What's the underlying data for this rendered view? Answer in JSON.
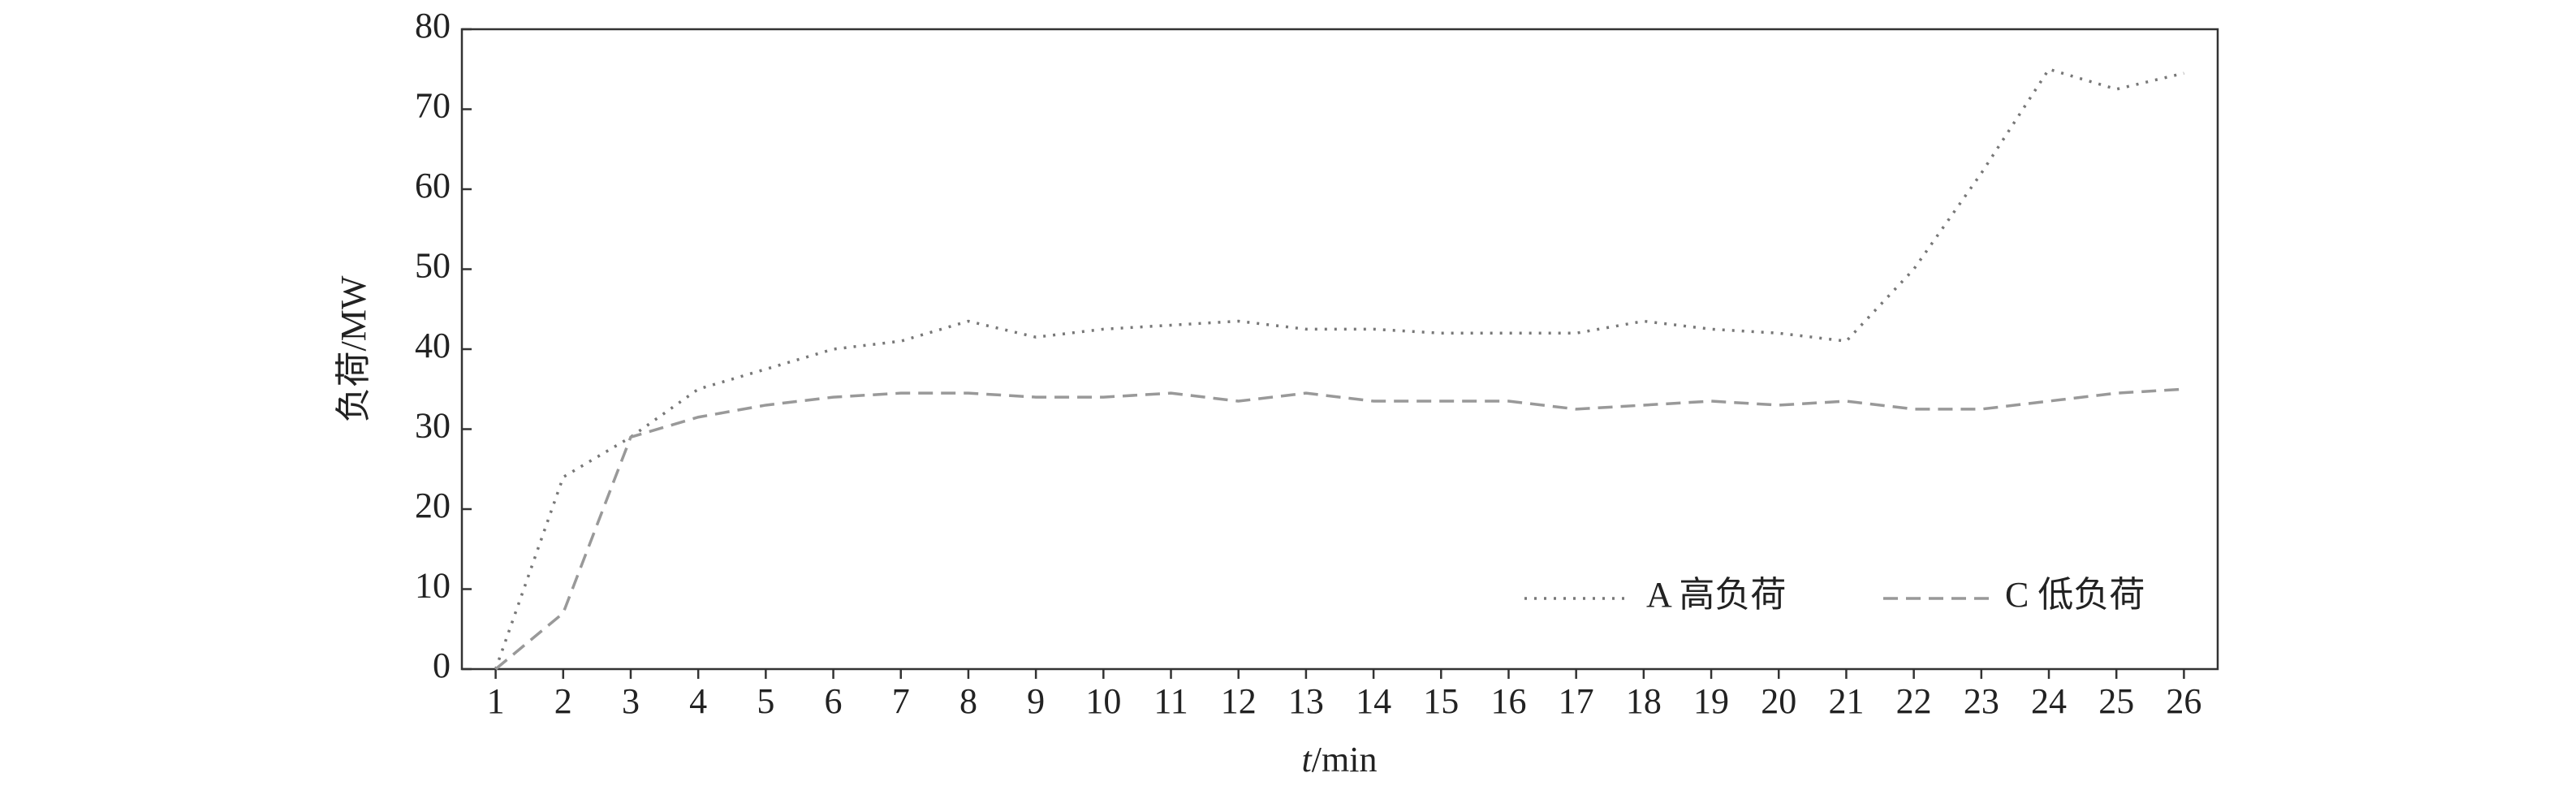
{
  "chart_data": {
    "type": "line",
    "xlabel": [
      "t",
      "/min"
    ],
    "ylabel": "负荷/MW",
    "x": [
      1,
      2,
      3,
      4,
      5,
      6,
      7,
      8,
      9,
      10,
      11,
      12,
      13,
      14,
      15,
      16,
      17,
      18,
      19,
      20,
      21,
      22,
      23,
      24,
      25,
      26
    ],
    "series": [
      {
        "name": "A 高负荷",
        "color": "#777777",
        "dash": "dotted",
        "values": [
          0,
          24,
          29,
          35,
          37.5,
          40,
          41,
          43.5,
          41.5,
          42.5,
          43,
          43.5,
          42.5,
          42.5,
          42,
          42,
          42,
          43.5,
          42.5,
          42,
          41,
          50,
          62,
          75,
          72.5,
          74.5
        ]
      },
      {
        "name": "C 低负荷",
        "color": "#999999",
        "dash": "dashed",
        "values": [
          0,
          7,
          29,
          31.5,
          33,
          34,
          34.5,
          34.5,
          34,
          34,
          34.5,
          33.5,
          34.5,
          33.5,
          33.5,
          33.5,
          32.5,
          33,
          33.5,
          33,
          33.5,
          32.5,
          32.5,
          33.5,
          34.5,
          35
        ]
      }
    ],
    "xlim": [
      0.5,
      26.5
    ],
    "xticks": [
      1,
      2,
      3,
      4,
      5,
      6,
      7,
      8,
      9,
      10,
      11,
      12,
      13,
      14,
      15,
      16,
      17,
      18,
      19,
      20,
      21,
      22,
      23,
      24,
      25,
      26
    ],
    "ylim": [
      0,
      80
    ],
    "yticks": [
      0,
      10,
      20,
      30,
      40,
      50,
      60,
      70,
      80
    ],
    "grid": false,
    "legend": "lower right"
  }
}
